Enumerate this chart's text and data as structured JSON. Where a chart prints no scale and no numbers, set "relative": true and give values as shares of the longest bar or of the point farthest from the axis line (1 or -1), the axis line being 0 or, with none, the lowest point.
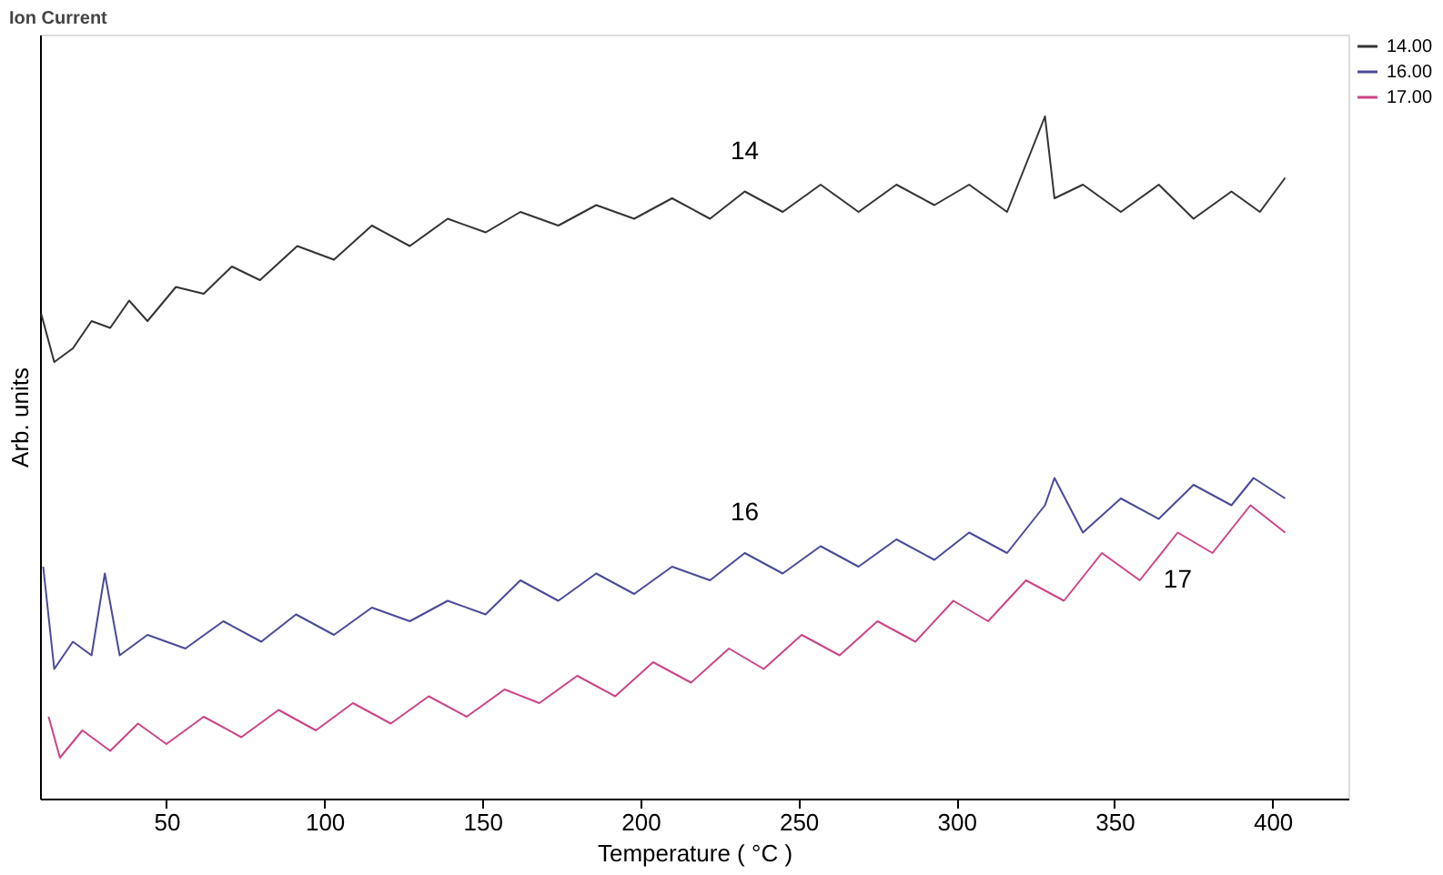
{
  "chart_data": {
    "type": "line",
    "title": "Ion Current",
    "xlabel": "Temperature ( °C )",
    "ylabel": "Arb. units",
    "relative": true,
    "tick_labels": "x",
    "grid": false,
    "legend": "top right",
    "line_style": "solid",
    "marker": "none",
    "xlim": [
      10,
      424
    ],
    "xticks": [
      50,
      100,
      150,
      200,
      250,
      300,
      350,
      400
    ],
    "annotations": [
      "14",
      "16",
      "17"
    ],
    "series": [
      {
        "name": "14.00",
        "color": "#333333",
        "x": [
          10.4,
          14.5,
          20.4,
          26.3,
          32.2,
          38.2,
          44,
          53,
          61.8,
          70.7,
          79.6,
          91.4,
          103,
          115,
          127,
          139,
          151,
          162,
          174,
          186,
          198,
          210,
          222,
          233,
          245,
          257,
          269,
          281,
          293,
          304,
          316,
          328,
          331,
          340,
          352,
          364,
          375,
          387,
          396,
          404
        ],
        "values": [
          0.71,
          0.64,
          0.66,
          0.7,
          0.69,
          0.73,
          0.7,
          0.75,
          0.74,
          0.78,
          0.76,
          0.81,
          0.79,
          0.84,
          0.81,
          0.85,
          0.83,
          0.86,
          0.84,
          0.87,
          0.85,
          0.88,
          0.85,
          0.89,
          0.86,
          0.9,
          0.86,
          0.9,
          0.87,
          0.9,
          0.86,
          1.0,
          0.88,
          0.9,
          0.86,
          0.9,
          0.85,
          0.89,
          0.86,
          0.91
        ]
      },
      {
        "name": "16.00",
        "color": "#4a4a9a",
        "x": [
          11,
          14.5,
          20.4,
          26.3,
          30.5,
          35.2,
          44,
          56,
          68,
          80,
          91,
          103,
          115,
          127,
          139,
          151,
          162,
          174,
          186,
          198,
          210,
          222,
          233,
          245,
          257,
          269,
          281,
          293,
          304,
          316,
          328,
          331,
          340,
          352,
          364,
          375,
          387,
          394,
          404
        ],
        "values": [
          0.34,
          0.19,
          0.23,
          0.21,
          0.33,
          0.21,
          0.24,
          0.22,
          0.26,
          0.23,
          0.27,
          0.24,
          0.28,
          0.26,
          0.29,
          0.27,
          0.32,
          0.29,
          0.33,
          0.3,
          0.34,
          0.32,
          0.36,
          0.33,
          0.37,
          0.34,
          0.38,
          0.35,
          0.39,
          0.36,
          0.43,
          0.47,
          0.39,
          0.44,
          0.41,
          0.46,
          0.43,
          0.47,
          0.44
        ]
      },
      {
        "name": "17.00",
        "color": "#cc4488",
        "x": [
          12.7,
          16.3,
          23.4,
          32.2,
          41,
          50,
          61.8,
          73.7,
          85.5,
          97.3,
          109,
          121,
          133,
          145,
          157,
          168,
          180,
          192,
          204,
          216,
          228,
          239,
          251,
          263,
          275,
          287,
          299,
          310,
          322,
          334,
          346,
          358,
          370,
          381,
          393,
          404
        ],
        "values": [
          0.12,
          0.06,
          0.1,
          0.07,
          0.11,
          0.08,
          0.12,
          0.09,
          0.13,
          0.1,
          0.14,
          0.11,
          0.15,
          0.12,
          0.16,
          0.14,
          0.18,
          0.15,
          0.2,
          0.17,
          0.22,
          0.19,
          0.24,
          0.21,
          0.26,
          0.23,
          0.29,
          0.26,
          0.32,
          0.29,
          0.36,
          0.32,
          0.39,
          0.36,
          0.43,
          0.39
        ]
      }
    ]
  }
}
